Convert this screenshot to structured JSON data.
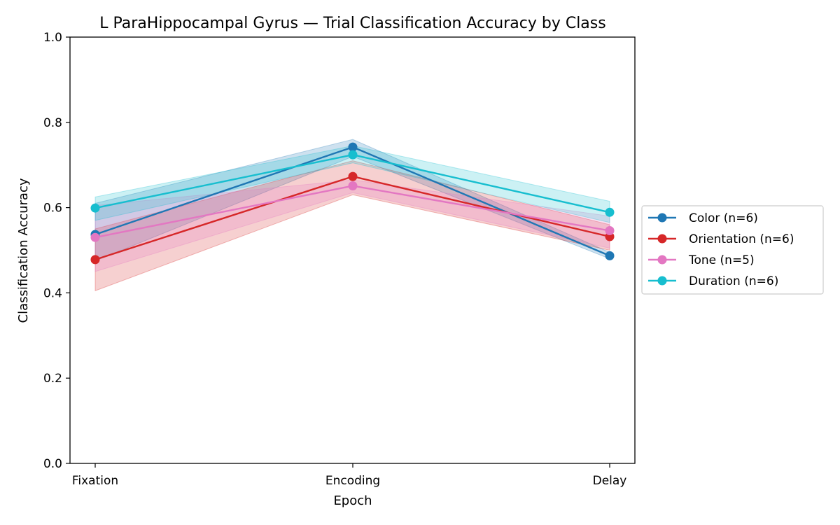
{
  "chart_data": {
    "type": "line",
    "title": "L ParaHippocampal Gyrus — Trial Classification Accuracy by Class",
    "xlabel": "Epoch",
    "ylabel": "Classification Accuracy",
    "categories": [
      "Fixation",
      "Encoding",
      "Delay"
    ],
    "ylim": [
      0,
      1
    ],
    "yticks": [
      0.0,
      0.2,
      0.4,
      0.6,
      0.8,
      1.0
    ],
    "ytick_labels": [
      "0.0",
      "0.2",
      "0.4",
      "0.6",
      "0.8",
      "1.0"
    ],
    "grid": false,
    "legend_position": "outside-right",
    "series": [
      {
        "name": "Color (n=6)",
        "color": "#1f77b4",
        "values": [
          0.537,
          0.742,
          0.487
        ],
        "lower": [
          0.475,
          0.72,
          0.48
        ],
        "upper": [
          0.61,
          0.76,
          0.495
        ]
      },
      {
        "name": "Orientation (n=6)",
        "color": "#d62728",
        "values": [
          0.478,
          0.673,
          0.532
        ],
        "lower": [
          0.405,
          0.63,
          0.5
        ],
        "upper": [
          0.55,
          0.71,
          0.56
        ]
      },
      {
        "name": "Tone (n=5)",
        "color": "#e377c2",
        "values": [
          0.53,
          0.651,
          0.546
        ],
        "lower": [
          0.45,
          0.635,
          0.505
        ],
        "upper": [
          0.605,
          0.665,
          0.58
        ]
      },
      {
        "name": "Duration (n=6)",
        "color": "#17becf",
        "values": [
          0.599,
          0.724,
          0.589
        ],
        "lower": [
          0.57,
          0.705,
          0.565
        ],
        "upper": [
          0.625,
          0.745,
          0.615
        ]
      }
    ]
  }
}
